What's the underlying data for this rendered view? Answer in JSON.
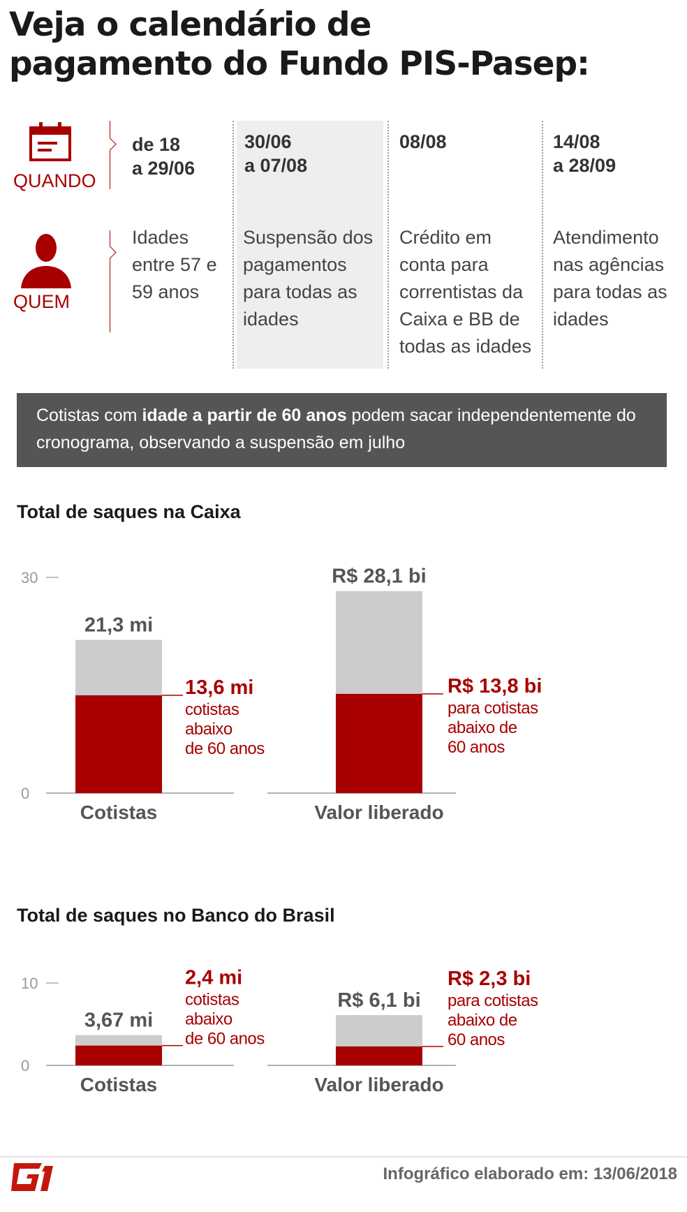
{
  "title": {
    "line1": "Veja o calendário de",
    "line2": "pagamento do Fundo PIS-Pasep:"
  },
  "calendar": {
    "row_labels": {
      "when": "QUANDO",
      "who": "QUEM"
    },
    "icons": {
      "when": "calendar-icon",
      "who": "person-icon"
    },
    "columns": [
      {
        "when": [
          "de 18",
          "a 29/06"
        ],
        "who": [
          "Idades",
          "entre 57 e",
          "59 anos"
        ],
        "highlighted": false
      },
      {
        "when": [
          "30/06",
          "a 07/08"
        ],
        "who": [
          "Suspensão dos",
          "pagamentos",
          "para todas as",
          "idades"
        ],
        "highlighted": true
      },
      {
        "when": [
          "08/08"
        ],
        "who": [
          "Crédito em",
          "conta para",
          "correntistas da",
          "Caixa e BB de",
          "todas as idades"
        ],
        "highlighted": false
      },
      {
        "when": [
          "14/08",
          "a 28/09"
        ],
        "who": [
          "Atendimento",
          "nas agências",
          "para todas as",
          "idades"
        ],
        "highlighted": false
      }
    ]
  },
  "note": {
    "before": "Cotistas com ",
    "bold": "idade a partir de 60 anos",
    "after": " podem sacar independentemente do cronograma, observando a suspensão em julho"
  },
  "colors": {
    "accent": "#a80000",
    "gray_bar": "#cccccc",
    "note_bg": "#555555"
  },
  "chart_data": [
    {
      "type": "bar",
      "title": "Total de saques na Caixa",
      "categories": [
        "Cotistas",
        "Valor liberado"
      ],
      "ylim": [
        0,
        30
      ],
      "yticks": [
        0,
        30
      ],
      "series": [
        {
          "values": [
            21.3,
            28.1
          ],
          "labels": [
            "21,3 mi",
            "R$ 28,1 bi"
          ]
        },
        {
          "values": [
            13.6,
            13.8
          ],
          "labels": [
            "13,6 mi",
            "R$ 13,8 bi"
          ],
          "descriptions": [
            [
              "cotistas",
              "abaixo",
              "de 60 anos"
            ],
            [
              "para cotistas",
              "abaixo de",
              "60 anos"
            ]
          ]
        }
      ]
    },
    {
      "type": "bar",
      "title": "Total de saques no Banco do Brasil",
      "categories": [
        "Cotistas",
        "Valor liberado"
      ],
      "ylim": [
        0,
        10
      ],
      "yticks": [
        0,
        10
      ],
      "series": [
        {
          "values": [
            3.67,
            6.1
          ],
          "labels": [
            "3,67 mi",
            "R$ 6,1 bi"
          ]
        },
        {
          "values": [
            2.4,
            2.3
          ],
          "labels": [
            "2,4 mi",
            "R$ 2,3 bi"
          ],
          "descriptions": [
            [
              "cotistas",
              "abaixo",
              "de 60 anos"
            ],
            [
              "para cotistas",
              "abaixo de",
              "60 anos"
            ]
          ]
        }
      ]
    }
  ],
  "footer": {
    "credit": "Infográfico elaborado em: 13/06/2018",
    "logo": "G1"
  }
}
